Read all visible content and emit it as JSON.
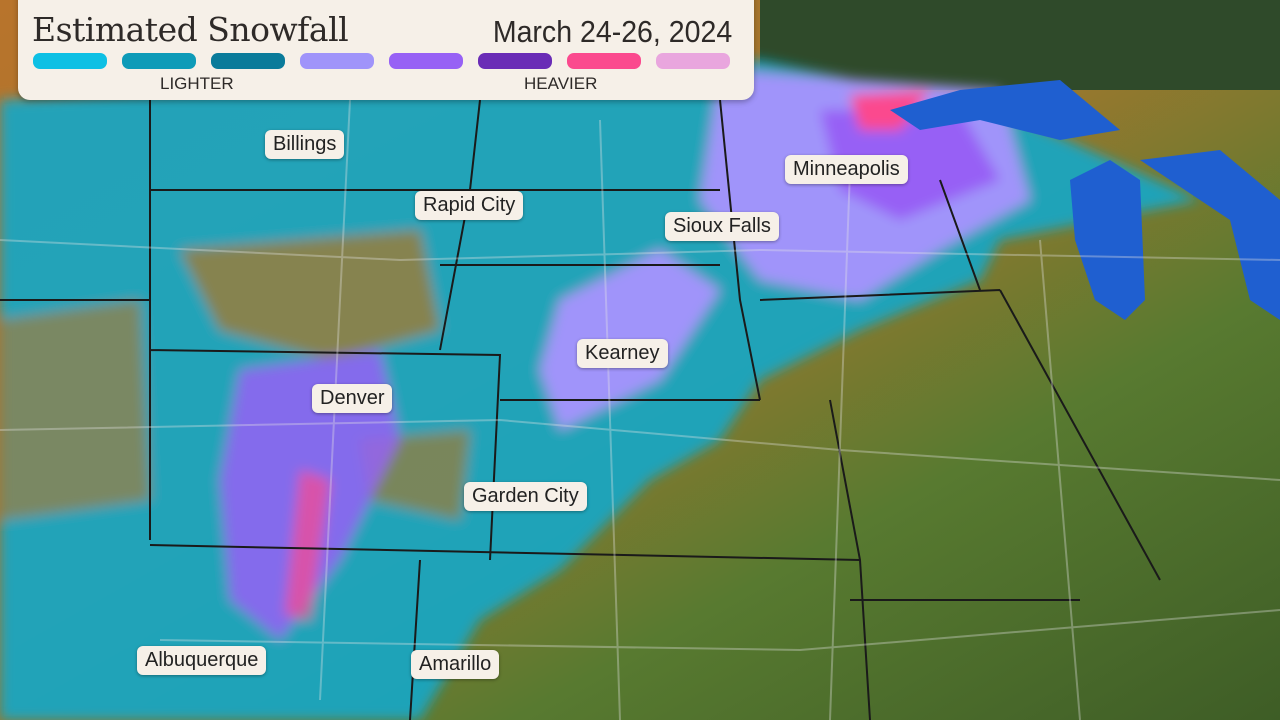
{
  "legend": {
    "title": "Estimated Snowfall",
    "date": "March 24-26, 2024",
    "scale_colors": [
      "#0ec0e4",
      "#0e9bb8",
      "#0a7b9a",
      "#a094fa",
      "#9761f5",
      "#6a2cb6",
      "#fb4a8e",
      "#e9a6de"
    ],
    "lighter_label": "LIGHTER",
    "heavier_label": "HEAVIER"
  },
  "cities": [
    {
      "name": "Billings"
    },
    {
      "name": "Rapid City"
    },
    {
      "name": "Minneapolis"
    },
    {
      "name": "Sioux Falls"
    },
    {
      "name": "Kearney"
    },
    {
      "name": "Denver"
    },
    {
      "name": "Garden City"
    },
    {
      "name": "Albuquerque"
    },
    {
      "name": "Amarillo"
    }
  ]
}
